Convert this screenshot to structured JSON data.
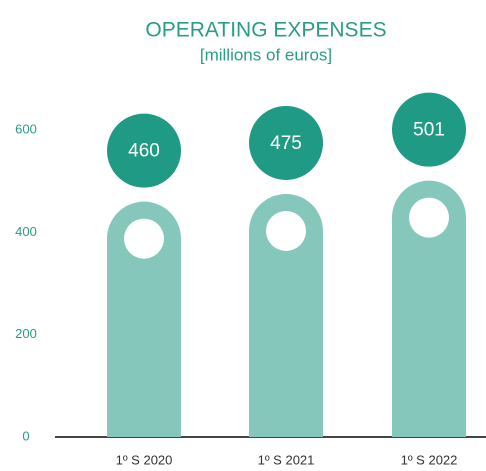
{
  "chart_data": {
    "type": "bar",
    "title": "OPERATING EXPENSES",
    "subtitle": "[millions of euros]",
    "categories": [
      "1º S 2020",
      "1º S 2021",
      "1º S 2022"
    ],
    "values": [
      460,
      475,
      501
    ],
    "color": "#86c7bc",
    "badge_color": "#1f9a85",
    "ylim": [
      0,
      600
    ],
    "yticks": [
      0,
      200,
      400,
      600
    ],
    "grid": false
  }
}
